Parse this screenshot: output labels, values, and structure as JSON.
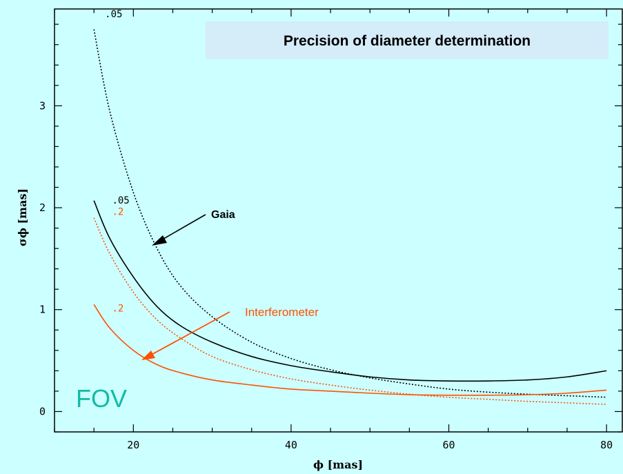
{
  "chart_data": {
    "type": "line",
    "title": "Precision of diameter determination",
    "xlabel": "ϕ  [mas]",
    "ylabel": "σϕ [mas]",
    "xlim": [
      10,
      82
    ],
    "ylim": [
      -0.2,
      3.95
    ],
    "xticks_major": [
      20,
      40,
      60,
      80
    ],
    "yticks_major": [
      0,
      1,
      2,
      3
    ],
    "grid": false,
    "series": [
      {
        "color": "#000000",
        "style": "dotted",
        "x": [
          15,
          17,
          20,
          23,
          26,
          30,
          35,
          40,
          45,
          50,
          55,
          60,
          65,
          70,
          75,
          80
        ],
        "y": [
          3.75,
          2.95,
          2.15,
          1.6,
          1.23,
          0.93,
          0.68,
          0.52,
          0.41,
          0.33,
          0.27,
          0.22,
          0.19,
          0.17,
          0.155,
          0.14
        ]
      },
      {
        "color": "#000000",
        "style": "solid",
        "x": [
          15,
          17,
          20,
          23,
          26,
          30,
          35,
          40,
          45,
          50,
          55,
          60,
          65,
          70,
          75,
          80
        ],
        "y": [
          2.07,
          1.7,
          1.32,
          1.03,
          0.84,
          0.68,
          0.54,
          0.45,
          0.39,
          0.34,
          0.31,
          0.3,
          0.3,
          0.31,
          0.34,
          0.4
        ]
      },
      {
        "color": "#ff5000",
        "style": "dotted",
        "x": [
          15,
          17,
          20,
          23,
          26,
          30,
          35,
          40,
          45,
          50,
          55,
          60,
          65,
          70,
          75,
          80
        ],
        "y": [
          1.9,
          1.55,
          1.17,
          0.9,
          0.72,
          0.54,
          0.41,
          0.32,
          0.26,
          0.21,
          0.17,
          0.14,
          0.12,
          0.1,
          0.085,
          0.07
        ]
      },
      {
        "color": "#ff5000",
        "style": "solid",
        "x": [
          15,
          17,
          20,
          23,
          26,
          30,
          35,
          40,
          45,
          50,
          55,
          60,
          65,
          70,
          75,
          80
        ],
        "y": [
          1.05,
          0.82,
          0.6,
          0.46,
          0.38,
          0.31,
          0.26,
          0.22,
          0.2,
          0.18,
          0.165,
          0.16,
          0.16,
          0.165,
          0.18,
          0.21
        ]
      }
    ],
    "curve_labels": [
      {
        "text": ".05",
        "color": "#000000",
        "x": 16.4,
        "y": 3.87
      },
      {
        "text": ".05",
        "color": "#000000",
        "x": 17.3,
        "y": 2.04
      },
      {
        "text": ".2",
        "color": "#ff5000",
        "x": 17.3,
        "y": 1.93
      },
      {
        "text": ".2",
        "color": "#ff5000",
        "x": 17.3,
        "y": 0.98
      }
    ],
    "annotations": [
      {
        "text": "Gaia",
        "color": "#000000"
      },
      {
        "text": "Interferometer",
        "color": "#ff5000"
      },
      {
        "text": "FOV",
        "color": "#11bba6"
      }
    ]
  }
}
